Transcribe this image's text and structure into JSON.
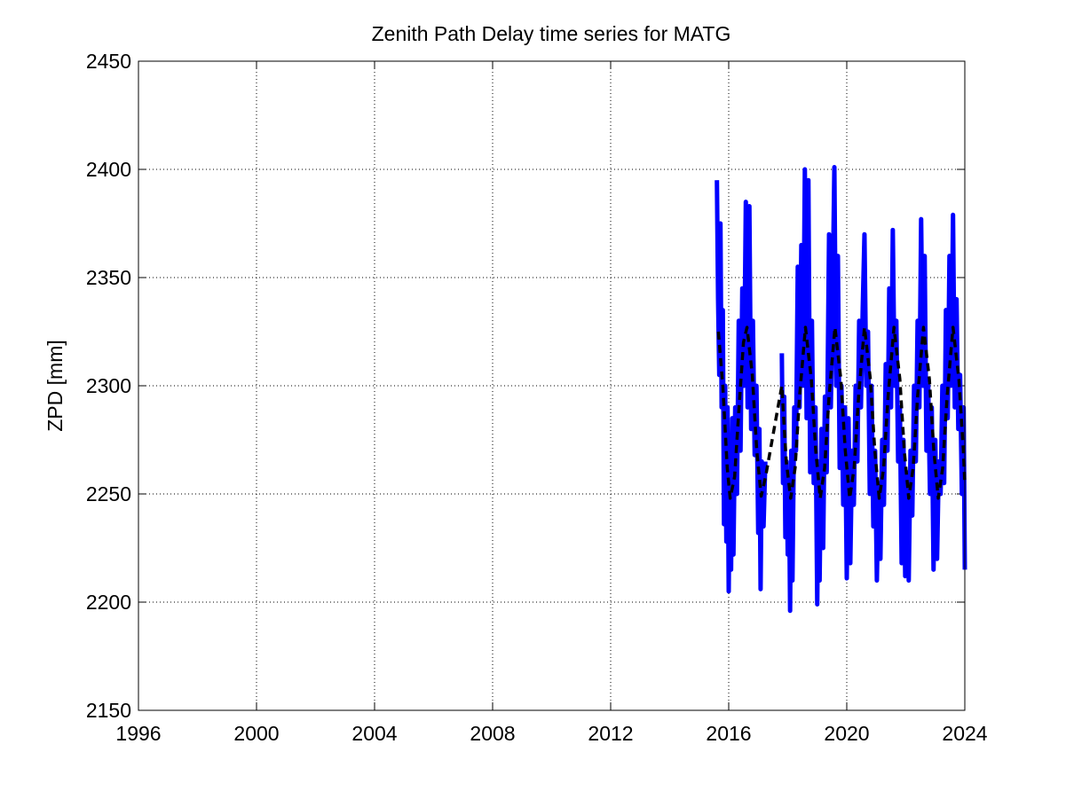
{
  "chart_data": {
    "type": "line",
    "title": "Zenith Path Delay time series for MATG",
    "y_label": "ZPD [mm]",
    "xlim": [
      1996,
      2024
    ],
    "xticks": [
      1996,
      2000,
      2004,
      2008,
      2012,
      2016,
      2020,
      2024
    ],
    "ylim": [
      2150,
      2450
    ],
    "yticks": [
      2150,
      2200,
      2250,
      2300,
      2350,
      2400,
      2450
    ],
    "grid": true,
    "series": [
      {
        "color": "#0000ff",
        "style": "solid",
        "x": [
          2015.6,
          2015.64,
          2015.68,
          2015.72,
          2015.76,
          2015.8,
          2015.84,
          2015.88,
          2015.92,
          2015.96,
          2016.0,
          2016.04,
          2016.08,
          2016.12,
          2016.16,
          2016.22,
          2016.28,
          2016.34,
          2016.4,
          2016.46,
          2016.52,
          2016.58,
          2016.64,
          2016.7,
          2016.76,
          2016.82,
          2016.88,
          2016.94,
          2017.0,
          2017.04,
          2017.08,
          2017.12,
          2017.18,
          2017.24,
          2017.5,
          2017.8,
          2017.84,
          2017.88,
          2017.92,
          2017.96,
          2018.0,
          2018.04,
          2018.08,
          2018.12,
          2018.16,
          2018.22,
          2018.28,
          2018.34,
          2018.4,
          2018.46,
          2018.52,
          2018.58,
          2018.64,
          2018.7,
          2018.76,
          2018.82,
          2018.88,
          2018.94,
          2019.0,
          2019.04,
          2019.08,
          2019.14,
          2019.2,
          2019.26,
          2019.32,
          2019.4,
          2019.46,
          2019.52,
          2019.58,
          2019.64,
          2019.7,
          2019.76,
          2019.82,
          2019.88,
          2019.94,
          2020.0,
          2020.06,
          2020.12,
          2020.18,
          2020.24,
          2020.3,
          2020.36,
          2020.42,
          2020.48,
          2020.54,
          2020.6,
          2020.66,
          2020.72,
          2020.78,
          2020.84,
          2020.9,
          2020.96,
          2021.02,
          2021.08,
          2021.14,
          2021.2,
          2021.26,
          2021.32,
          2021.38,
          2021.44,
          2021.5,
          2021.56,
          2021.62,
          2021.68,
          2021.74,
          2021.8,
          2021.86,
          2021.92,
          2021.98,
          2022.04,
          2022.1,
          2022.16,
          2022.22,
          2022.28,
          2022.34,
          2022.4,
          2022.46,
          2022.52,
          2022.58,
          2022.64,
          2022.7,
          2022.76,
          2022.82,
          2022.88,
          2022.94,
          2023.0,
          2023.06,
          2023.12,
          2023.18,
          2023.24,
          2023.3,
          2023.36,
          2023.42,
          2023.48,
          2023.54,
          2023.6,
          2023.66,
          2023.72,
          2023.78,
          2023.84,
          2023.9,
          2023.96,
          2024.0
        ],
        "values": [
          2395,
          2340,
          2305,
          2375,
          2290,
          2335,
          2236,
          2300,
          2228,
          2290,
          2205,
          2270,
          2215,
          2285,
          2222,
          2290,
          2250,
          2330,
          2270,
          2345,
          2300,
          2385,
          2290,
          2383,
          2280,
          2330,
          2268,
          2300,
          2232,
          2280,
          2206,
          2265,
          2235,
          2265,
          null,
          2315,
          2255,
          2295,
          2230,
          2265,
          2222,
          2260,
          2196,
          2270,
          2210,
          2290,
          2270,
          2355,
          2290,
          2365,
          2300,
          2400,
          2285,
          2395,
          2260,
          2330,
          2255,
          2290,
          2199,
          2265,
          2210,
          2280,
          2225,
          2295,
          2260,
          2370,
          2290,
          2340,
          2401,
          2300,
          2360,
          2262,
          2300,
          2245,
          2290,
          2211,
          2285,
          2218,
          2270,
          2245,
          2300,
          2265,
          2330,
          2290,
          2335,
          2370,
          2300,
          2325,
          2250,
          2300,
          2235,
          2270,
          2210,
          2255,
          2220,
          2275,
          2245,
          2310,
          2270,
          2345,
          2290,
          2372,
          2300,
          2330,
          2265,
          2290,
          2218,
          2275,
          2212,
          2260,
          2210,
          2270,
          2240,
          2300,
          2265,
          2330,
          2290,
          2377,
          2300,
          2360,
          2270,
          2300,
          2250,
          2290,
          2215,
          2275,
          2220,
          2265,
          2250,
          2300,
          2255,
          2335,
          2285,
          2360,
          2300,
          2379,
          2290,
          2340,
          2280,
          2305,
          2250,
          2290,
          2215
        ]
      },
      {
        "color": "#000000",
        "style": "dashed",
        "x": [
          2015.65,
          2015.8,
          2015.95,
          2016.05,
          2016.2,
          2016.35,
          2016.5,
          2016.62,
          2016.8,
          2016.95,
          2017.1,
          2017.25,
          2017.8,
          2017.95,
          2018.1,
          2018.25,
          2018.4,
          2018.6,
          2018.8,
          2018.95,
          2019.1,
          2019.25,
          2019.4,
          2019.6,
          2019.8,
          2019.95,
          2020.1,
          2020.25,
          2020.4,
          2020.6,
          2020.8,
          2020.95,
          2021.1,
          2021.25,
          2021.4,
          2021.6,
          2021.8,
          2021.95,
          2022.1,
          2022.25,
          2022.4,
          2022.6,
          2022.8,
          2022.95,
          2023.1,
          2023.25,
          2023.4,
          2023.6,
          2023.8,
          2023.95,
          2024.0
        ],
        "values": [
          2325,
          2300,
          2262,
          2248,
          2258,
          2290,
          2320,
          2327,
          2305,
          2270,
          2249,
          2258,
          2300,
          2265,
          2248,
          2262,
          2295,
          2327,
          2303,
          2270,
          2248,
          2262,
          2295,
          2327,
          2303,
          2270,
          2248,
          2262,
          2295,
          2327,
          2303,
          2270,
          2248,
          2262,
          2295,
          2327,
          2303,
          2270,
          2248,
          2262,
          2295,
          2327,
          2303,
          2270,
          2248,
          2262,
          2295,
          2327,
          2303,
          2270,
          2255
        ]
      }
    ]
  }
}
